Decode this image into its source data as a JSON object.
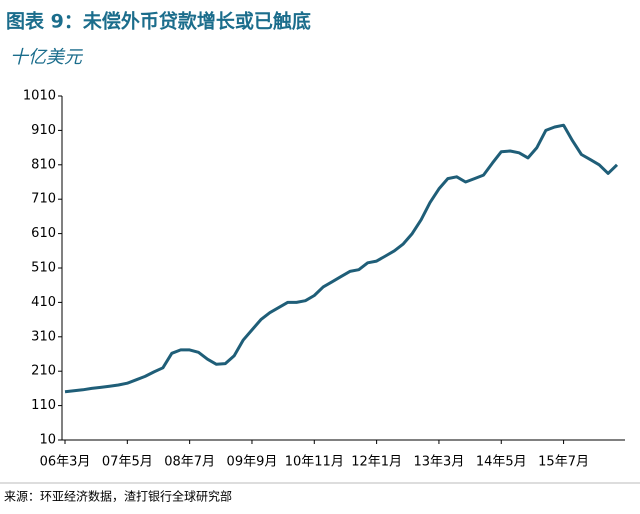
{
  "chart_data": {
    "type": "line",
    "title": "图表 9：未偿外币贷款增长或已触底",
    "subtitle": "十亿美元",
    "source": "来源：环亚经济数据，渣打银行全球研究部",
    "categories": [
      "06年3月",
      null,
      null,
      null,
      null,
      null,
      null,
      "07年5月",
      null,
      null,
      null,
      null,
      null,
      null,
      "08年7月",
      null,
      null,
      null,
      null,
      null,
      null,
      "09年9月",
      null,
      null,
      null,
      null,
      null,
      null,
      "10年11月",
      null,
      null,
      null,
      null,
      null,
      null,
      "12年1月",
      null,
      null,
      null,
      null,
      null,
      null,
      "13年3月",
      null,
      null,
      null,
      null,
      null,
      null,
      "14年5月",
      null,
      null,
      null,
      null,
      null,
      null,
      "15年7月",
      null,
      null,
      null,
      null,
      null,
      null
    ],
    "series": [
      {
        "color": "#1f5e78",
        "values": [
          150,
          153,
          156,
          160,
          163,
          166,
          170,
          175,
          185,
          195,
          208,
          220,
          262,
          272,
          272,
          265,
          245,
          230,
          232,
          255,
          300,
          330,
          360,
          380,
          395,
          410,
          410,
          415,
          430,
          455,
          470,
          485,
          500,
          505,
          525,
          530,
          545,
          560,
          580,
          610,
          650,
          700,
          740,
          770,
          775,
          760,
          770,
          780,
          815,
          848,
          850,
          845,
          830,
          860,
          910,
          920,
          925,
          880,
          840,
          825,
          810,
          785,
          810
        ]
      }
    ],
    "ylim": [
      10,
      1010
    ],
    "yticks": [
      10,
      110,
      210,
      310,
      410,
      510,
      610,
      710,
      810,
      910,
      1010
    ]
  }
}
